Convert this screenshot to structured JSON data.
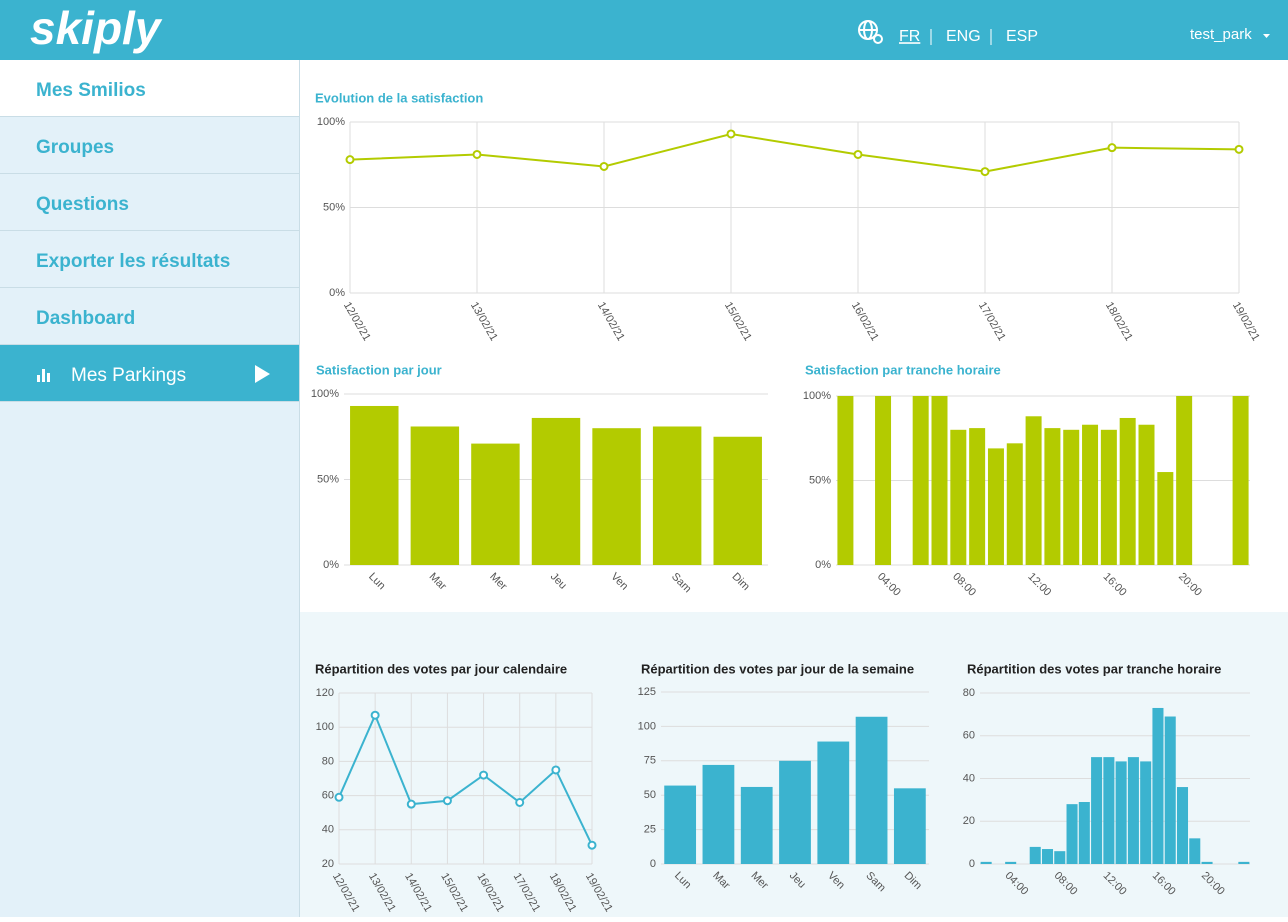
{
  "header": {
    "logo": "skiply",
    "languages": [
      "FR",
      "ENG",
      "ESP"
    ],
    "user": "test_park"
  },
  "sidebar": {
    "items": [
      "Mes Smilios",
      "Groupes",
      "Questions",
      "Exporter les résultats",
      "Dashboard",
      "Mes Parkings"
    ]
  },
  "chart_data": [
    {
      "type": "line",
      "title": "Evolution de la satisfaction",
      "categories": [
        "12/02/21",
        "13/02/21",
        "14/02/21",
        "15/02/21",
        "16/02/21",
        "17/02/21",
        "18/02/21",
        "19/02/21"
      ],
      "values": [
        78,
        81,
        74,
        93,
        81,
        71,
        85,
        84
      ],
      "color": "#b3cb00",
      "ylim": [
        0,
        100
      ],
      "yticks": [
        {
          "value": 0,
          "label": "0%"
        },
        {
          "value": 50,
          "label": "50%"
        },
        {
          "value": 100,
          "label": "100%"
        }
      ],
      "grid": true
    },
    {
      "type": "bar",
      "title": "Satisfaction par jour",
      "categories": [
        "Lun",
        "Mar",
        "Mer",
        "Jeu",
        "Ven",
        "Sam",
        "Dim"
      ],
      "values": [
        93,
        81,
        71,
        86,
        80,
        81,
        75
      ],
      "color": "#b3cb00",
      "ylim": [
        0,
        100
      ],
      "yticks": [
        {
          "value": 0,
          "label": "0%"
        },
        {
          "value": 50,
          "label": "50%"
        },
        {
          "value": 100,
          "label": "100%"
        }
      ],
      "grid": true
    },
    {
      "type": "bar",
      "title": "Satisfaction par tranche horaire",
      "categories": [
        null,
        null,
        "04:00",
        null,
        null,
        null,
        "08:00",
        null,
        null,
        null,
        "12:00",
        null,
        null,
        null,
        "16:00",
        null,
        null,
        null,
        "20:00",
        null,
        null,
        null
      ],
      "values": [
        100,
        null,
        100,
        null,
        100,
        100,
        80,
        81,
        69,
        72,
        88,
        81,
        80,
        83,
        80,
        87,
        83,
        55,
        100,
        null,
        null,
        100
      ],
      "color": "#b3cb00",
      "ylim": [
        0,
        100
      ],
      "yticks": [
        {
          "value": 0,
          "label": "0%"
        },
        {
          "value": 50,
          "label": "50%"
        },
        {
          "value": 100,
          "label": "100%"
        }
      ],
      "grid": true
    },
    {
      "type": "line",
      "title": "Répartition des votes par jour calendaire",
      "categories": [
        "12/02/21",
        "13/02/21",
        "14/02/21",
        "15/02/21",
        "16/02/21",
        "17/02/21",
        "18/02/21",
        "19/02/21"
      ],
      "values": [
        59,
        107,
        55,
        57,
        72,
        56,
        75,
        31
      ],
      "color": "#3bb3cf",
      "ylim": [
        20,
        120
      ],
      "yticks": [
        20,
        40,
        60,
        80,
        100,
        120
      ],
      "grid": true
    },
    {
      "type": "bar",
      "title": "Répartition des votes par jour de la semaine",
      "categories": [
        "Lun",
        "Mar",
        "Mer",
        "Jeu",
        "Ven",
        "Sam",
        "Dim"
      ],
      "values": [
        57,
        72,
        56,
        75,
        89,
        107,
        55
      ],
      "color": "#3bb3cf",
      "ylim": [
        0,
        125
      ],
      "yticks": [
        0,
        25,
        50,
        75,
        100,
        125
      ],
      "grid": true
    },
    {
      "type": "bar",
      "title": "Répartition des votes par tranche horaire",
      "categories": [
        null,
        null,
        "04:00",
        null,
        null,
        null,
        "08:00",
        null,
        null,
        null,
        "12:00",
        null,
        null,
        null,
        "16:00",
        null,
        null,
        null,
        "20:00",
        null,
        null,
        null
      ],
      "values": [
        1,
        null,
        1,
        null,
        8,
        7,
        6,
        28,
        29,
        50,
        50,
        48,
        50,
        48,
        73,
        69,
        36,
        12,
        1,
        null,
        null,
        1
      ],
      "color": "#3bb3cf",
      "ylim": [
        0,
        80
      ],
      "yticks": [
        0,
        20,
        40,
        60,
        80
      ],
      "grid": true
    }
  ]
}
